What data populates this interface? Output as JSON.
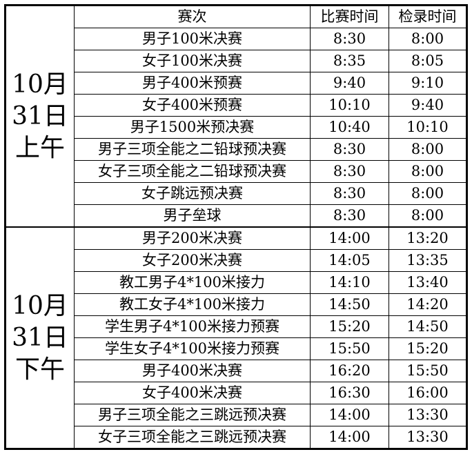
{
  "header": {
    "event": "赛次",
    "race_time": "比赛时间",
    "check_time": "检录时间"
  },
  "sessions": [
    {
      "date_lines": [
        "10月",
        "31日",
        "上午"
      ],
      "rows": [
        {
          "event": "男子100米决赛",
          "race_time": "8:30",
          "check_time": "8:00"
        },
        {
          "event": "女子100米决赛",
          "race_time": "8:35",
          "check_time": "8:05"
        },
        {
          "event": "男子400米预赛",
          "race_time": "9:40",
          "check_time": "9:10"
        },
        {
          "event": "女子400米预赛",
          "race_time": "10:10",
          "check_time": "9:40"
        },
        {
          "event": "男子1500米预决赛",
          "race_time": "10:40",
          "check_time": "10:10"
        },
        {
          "event": "男子三项全能之二铅球预决赛",
          "race_time": "8:30",
          "check_time": "8:00"
        },
        {
          "event": "女子三项全能之二铅球预决赛",
          "race_time": "8:30",
          "check_time": "8:00"
        },
        {
          "event": "女子跳远预决赛",
          "race_time": "8:30",
          "check_time": "8:00"
        },
        {
          "event": "男子垒球",
          "race_time": "8:30",
          "check_time": "8:00"
        }
      ]
    },
    {
      "date_lines": [
        "10月",
        "31日",
        "下午"
      ],
      "rows": [
        {
          "event": "男子200米决赛",
          "race_time": "14:00",
          "check_time": "13:20"
        },
        {
          "event": "女子200米决赛",
          "race_time": "14:05",
          "check_time": "13:35"
        },
        {
          "event": "教工男子4*100米接力",
          "race_time": "14:10",
          "check_time": "13:40"
        },
        {
          "event": "教工女子4*100米接力",
          "race_time": "14:50",
          "check_time": "14:20"
        },
        {
          "event": "学生男子4*100米接力预赛",
          "race_time": "15:20",
          "check_time": "14:50"
        },
        {
          "event": "学生女子4*100米接力预赛",
          "race_time": "15:50",
          "check_time": "15:20"
        },
        {
          "event": "男子400米决赛",
          "race_time": "16:20",
          "check_time": "15:50"
        },
        {
          "event": "女子400米决赛",
          "race_time": "16:30",
          "check_time": "16:00"
        },
        {
          "event": "男子三项全能之三跳远预决赛",
          "race_time": "14:00",
          "check_time": "13:30"
        },
        {
          "event": "女子三项全能之三跳远预决赛",
          "race_time": "14:00",
          "check_time": "13:30"
        }
      ]
    }
  ]
}
